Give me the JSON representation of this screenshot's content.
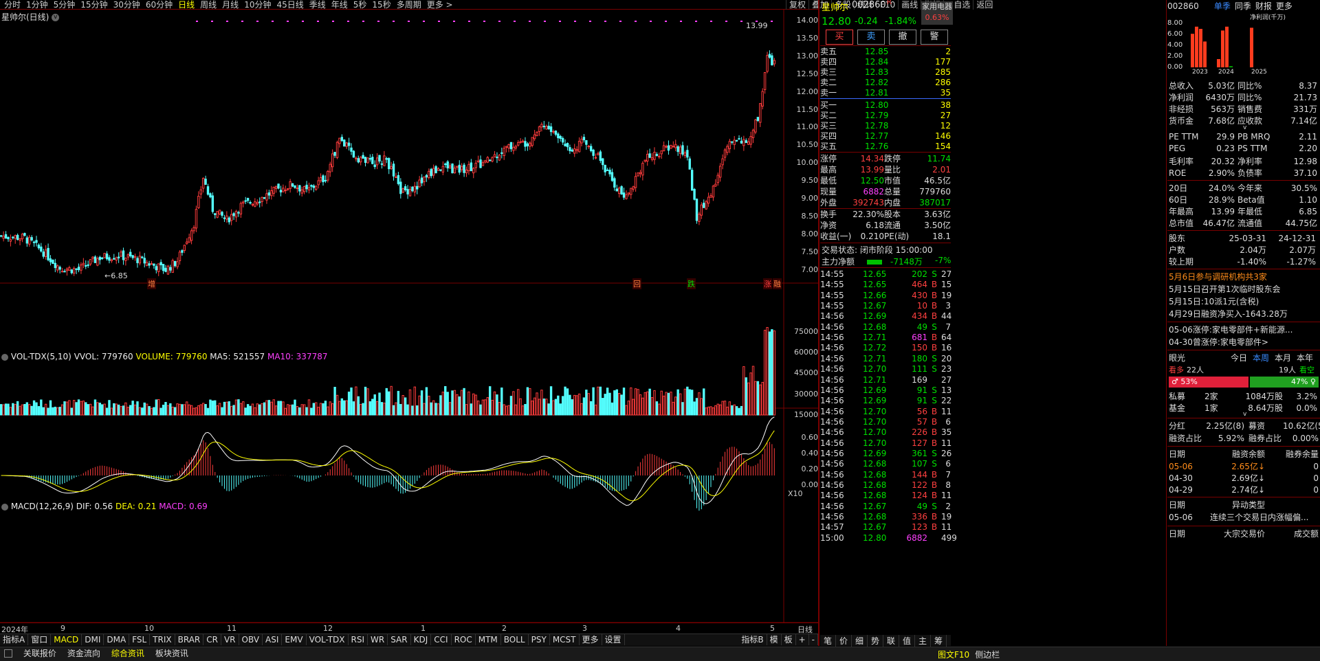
{
  "toolbar": {
    "periods": [
      "分时",
      "1分钟",
      "5分钟",
      "15分钟",
      "30分钟",
      "60分钟",
      "日线",
      "周线",
      "月线",
      "10分钟",
      "45日线",
      "季线",
      "年线",
      "5秒",
      "15秒",
      "多周期",
      "更多 >"
    ],
    "active_period": "日线",
    "right": [
      "复权",
      "叠加",
      "多股",
      "统计",
      "F10",
      "画线",
      "指标",
      "+自选",
      "返回"
    ]
  },
  "chart_title": "星帅尔(日线)",
  "price_axis": [
    "14.00",
    "13.50",
    "13.00",
    "12.50",
    "12.00",
    "11.50",
    "11.00",
    "10.50",
    "10.00",
    "9.50",
    "9.00",
    "8.50",
    "8.00",
    "7.50",
    "7.00"
  ],
  "annotations": {
    "high_label": "13.99",
    "low_label": "6.85",
    "events": [
      "增",
      "回",
      "跌",
      "涨",
      "融"
    ]
  },
  "vol": {
    "title": "VOL-TDX(5,10)",
    "vvol": "VVOL: 779760",
    "volume": "VOLUME: 779760",
    "ma5": "MA5: 521557",
    "ma10": "MA10: 337787",
    "axis": [
      "75000",
      "60000",
      "45000",
      "30000",
      "15000"
    ],
    "unit": "X10"
  },
  "macd": {
    "title": "MACD(12,26,9)",
    "dif": "DIF: 0.56",
    "dea": "DEA: 0.21",
    "macd": "MACD: 0.69",
    "axis": [
      "0.60",
      "0.40",
      "0.20",
      "0.00"
    ]
  },
  "date_axis": [
    "2024年",
    "9",
    "10",
    "11",
    "12",
    "1",
    "2",
    "3",
    "4",
    "5"
  ],
  "date_axis_right": "日线",
  "indicator_tabs": [
    "指标A",
    "窗口",
    "MACD",
    "DMI",
    "DMA",
    "FSL",
    "TRIX",
    "BRAR",
    "CR",
    "VR",
    "OBV",
    "ASI",
    "EMV",
    "VOL-TDX",
    "RSI",
    "WR",
    "SAR",
    "KDJ",
    "CCI",
    "ROC",
    "MTM",
    "BOLL",
    "PSY",
    "MCST",
    "更多",
    "设置"
  ],
  "indicator_right": [
    "指标B",
    "模",
    "板",
    "+",
    "-"
  ],
  "bottom_tabs": [
    "关联报价",
    "资金流向",
    "综合资讯",
    "板块资讯"
  ],
  "bottom_right": [
    "图文F10",
    "侧边栏"
  ],
  "quote": {
    "name": "星帅尔",
    "code": "002860",
    "flag": "R",
    "price": "12.80",
    "change": "-0.24",
    "pct": "-1.84%",
    "sector": "家用电器",
    "sector_pct": "0.63%",
    "buttons": [
      "买",
      "卖",
      "撤",
      "警"
    ],
    "sells": [
      {
        "l": "卖五",
        "p": "12.85",
        "v": "2"
      },
      {
        "l": "卖四",
        "p": "12.84",
        "v": "177"
      },
      {
        "l": "卖三",
        "p": "12.83",
        "v": "285"
      },
      {
        "l": "卖二",
        "p": "12.82",
        "v": "286"
      },
      {
        "l": "卖一",
        "p": "12.81",
        "v": "35"
      }
    ],
    "buys": [
      {
        "l": "买一",
        "p": "12.80",
        "v": "38"
      },
      {
        "l": "买二",
        "p": "12.79",
        "v": "27"
      },
      {
        "l": "买三",
        "p": "12.78",
        "v": "12"
      },
      {
        "l": "买四",
        "p": "12.77",
        "v": "146"
      },
      {
        "l": "买五",
        "p": "12.76",
        "v": "154"
      }
    ],
    "stats": [
      [
        "涨停",
        "14.34",
        "跌停",
        "11.74"
      ],
      [
        "最高",
        "13.99",
        "量比",
        "2.01"
      ],
      [
        "最低",
        "12.50",
        "市值",
        "46.5亿"
      ],
      [
        "现量",
        "6882",
        "总量",
        "779760"
      ],
      [
        "外盘",
        "392743",
        "内盘",
        "387017"
      ],
      [
        "换手",
        "22.30%",
        "股本",
        "3.63亿"
      ],
      [
        "净资",
        "6.18",
        "流通",
        "3.50亿"
      ],
      [
        "收益(一)",
        "0.210",
        "PE(动)",
        "18.1"
      ]
    ],
    "trade_status": "交易状态: 闭市阶段 15:00:00",
    "main_flow_label": "主力净额",
    "main_flow_value": "-7148万",
    "main_flow_pct": "-7%"
  },
  "ticks": [
    [
      "14:55",
      "12.65",
      "202",
      "S",
      "27"
    ],
    [
      "14:55",
      "12.65",
      "464",
      "B",
      "15"
    ],
    [
      "14:55",
      "12.66",
      "430",
      "B",
      "19"
    ],
    [
      "14:55",
      "12.67",
      "10",
      "B",
      "3"
    ],
    [
      "14:56",
      "12.69",
      "434",
      "B",
      "44"
    ],
    [
      "14:56",
      "12.68",
      "49",
      "S",
      "7"
    ],
    [
      "14:56",
      "12.71",
      "681",
      "B",
      "64"
    ],
    [
      "14:56",
      "12.72",
      "150",
      "B",
      "16"
    ],
    [
      "14:56",
      "12.71",
      "180",
      "S",
      "20"
    ],
    [
      "14:56",
      "12.70",
      "111",
      "S",
      "23"
    ],
    [
      "14:56",
      "12.71",
      "169",
      "",
      "27"
    ],
    [
      "14:56",
      "12.69",
      "91",
      "S",
      "13"
    ],
    [
      "14:56",
      "12.69",
      "91",
      "S",
      "22"
    ],
    [
      "14:56",
      "12.70",
      "56",
      "B",
      "11"
    ],
    [
      "14:56",
      "12.70",
      "57",
      "B",
      "6"
    ],
    [
      "14:56",
      "12.70",
      "226",
      "B",
      "35"
    ],
    [
      "14:56",
      "12.70",
      "127",
      "B",
      "11"
    ],
    [
      "14:56",
      "12.69",
      "361",
      "S",
      "26"
    ],
    [
      "14:56",
      "12.68",
      "107",
      "S",
      "6"
    ],
    [
      "14:56",
      "12.68",
      "144",
      "B",
      "7"
    ],
    [
      "14:56",
      "12.68",
      "122",
      "B",
      "8"
    ],
    [
      "14:56",
      "12.68",
      "124",
      "B",
      "11"
    ],
    [
      "14:56",
      "12.67",
      "49",
      "S",
      "2"
    ],
    [
      "14:56",
      "12.68",
      "336",
      "B",
      "19"
    ],
    [
      "14:57",
      "12.67",
      "123",
      "B",
      "11"
    ],
    [
      "15:00",
      "12.80",
      "6882",
      "",
      "499"
    ]
  ],
  "tick_tabs": [
    "笔",
    "价",
    "细",
    "势",
    "联",
    "值",
    "主",
    "筹"
  ],
  "fin": {
    "code": "002860",
    "tabs": [
      "单季",
      "同季",
      "财报",
      "更多"
    ],
    "chart_label": "净利润(千万)",
    "chart_axis": [
      "8.00",
      "6.00",
      "4.00",
      "2.00",
      "0.00"
    ],
    "years": [
      "2023",
      "2024",
      "2025"
    ],
    "bars": [
      6.1,
      7.4,
      7.0,
      4.7,
      1.5,
      6.7,
      7.4,
      0.2,
      7.2
    ],
    "rows": [
      [
        "总收入",
        "5.03亿",
        "同比%",
        "8.37"
      ],
      [
        "净利润",
        "6430万",
        "同比%",
        "21.73"
      ],
      [
        "非经损",
        "563万",
        "销售费",
        "331万"
      ],
      [
        "货币金",
        "7.68亿",
        "应收款",
        "7.14亿"
      ]
    ],
    "val": [
      [
        "PE TTM",
        "29.9",
        "PB MRQ",
        "2.11"
      ],
      [
        "PEG",
        "0.23",
        "PS TTM",
        "2.20"
      ],
      [
        "毛利率",
        "20.32",
        "净利率",
        "12.98"
      ],
      [
        "ROE",
        "2.90%",
        "负债率",
        "37.10"
      ]
    ],
    "perf": [
      [
        "20日",
        "24.0%",
        "今年来",
        "30.5%"
      ],
      [
        "60日",
        "28.9%",
        "Beta值",
        "1.10"
      ],
      [
        "年最高",
        "13.99",
        "年最低",
        "6.85"
      ],
      [
        "总市值",
        "46.47亿",
        "流通值",
        "44.75亿"
      ]
    ],
    "holders_head": [
      "股东",
      "25-03-31",
      "24-12-31"
    ],
    "holders": [
      [
        "户数",
        "2.04万",
        "2.07万"
      ],
      [
        "较上期",
        "-1.40%",
        "-1.27%"
      ]
    ],
    "news": [
      "5月6日参与调研机构共3家",
      "5月15日召开第1次临时股东会",
      "5月15日:10派1元(含税)",
      "4月29日融资净买入-1643.28万"
    ],
    "limit_news": [
      "05-06涨停:家电零部件+新能源...",
      "04-30曾涨停:家电零部件>"
    ],
    "eye": {
      "label": "眼光",
      "tabs": [
        "今日",
        "本周",
        "本月",
        "本年"
      ],
      "bull": "看多",
      "bull_n": "22人",
      "bear_n": "19人",
      "bear": "看空",
      "bull_pct": "53%",
      "bear_pct": "47%"
    },
    "funds": [
      [
        "私募",
        "2家",
        "1084万股",
        "3.2%"
      ],
      [
        "基金",
        "1家",
        "8.64万股",
        "0.0%"
      ]
    ],
    "div": [
      [
        "分红",
        "2.25亿(8)",
        "募资",
        "10.62亿(5)"
      ],
      [
        "融资占比",
        "5.92%",
        "融券占比",
        "0.00%"
      ]
    ],
    "margin_head": [
      "日期",
      "融资余额",
      "融券余量"
    ],
    "margin": [
      [
        "05-06",
        "2.65亿↓",
        "0"
      ],
      [
        "04-30",
        "2.69亿↓",
        "0"
      ],
      [
        "04-29",
        "2.74亿↓",
        "0"
      ]
    ],
    "abn_head": [
      "日期",
      "异动类型"
    ],
    "abn": [
      [
        "05-06",
        "连续三个交易日内涨幅偏..."
      ]
    ],
    "block_head": [
      "日期",
      "大宗交易价",
      "成交额"
    ]
  }
}
